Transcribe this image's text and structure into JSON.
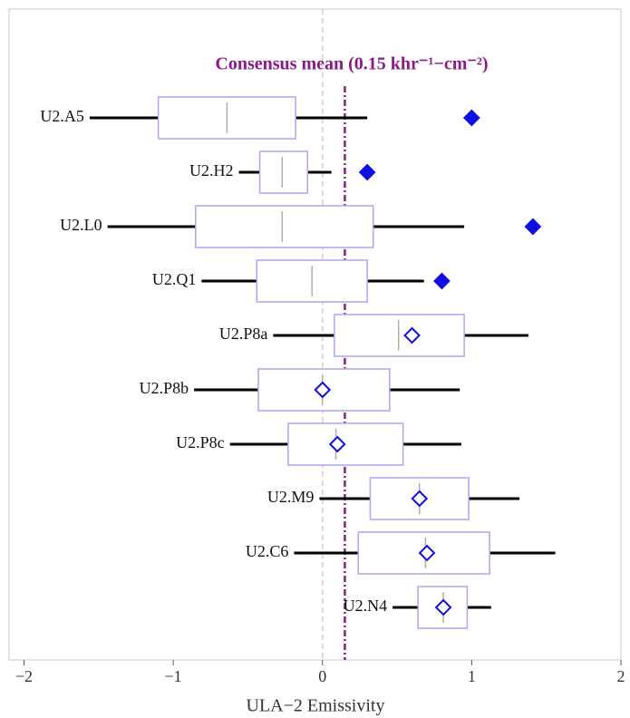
{
  "chart_data": {
    "type": "box",
    "title": "Consensus mean (0.15 khr⁻¹−cm⁻²)",
    "x_label": "ULA−2 Emissivity",
    "categories": [
      "U2.A5",
      "U2.H2",
      "U2.L0",
      "U2.Q1",
      "U2.P8a",
      "U2.P8b",
      "U2.P8c",
      "U2.M9",
      "U2.C6",
      "U2.N4"
    ],
    "whisker_low": [
      -1.56,
      -0.56,
      -1.44,
      -0.81,
      -0.33,
      -0.86,
      -0.62,
      -0.02,
      -0.19,
      0.47
    ],
    "q1": [
      -1.1,
      -0.42,
      -0.85,
      -0.44,
      0.08,
      -0.43,
      -0.23,
      0.32,
      0.24,
      0.64
    ],
    "median": [
      -0.64,
      -0.27,
      -0.27,
      -0.07,
      0.51,
      0.0,
      0.09,
      0.65,
      0.69,
      0.81
    ],
    "q3": [
      -0.18,
      -0.1,
      0.34,
      0.3,
      0.95,
      0.45,
      0.54,
      0.98,
      1.12,
      0.97
    ],
    "whisker_high": [
      0.3,
      0.06,
      0.95,
      0.68,
      1.38,
      0.92,
      0.93,
      1.32,
      1.56,
      1.13
    ],
    "marker": [
      1.0,
      0.3,
      1.41,
      0.8,
      0.6,
      0.0,
      0.1,
      0.65,
      0.7,
      0.81
    ],
    "marker_filled": [
      true,
      true,
      true,
      true,
      false,
      false,
      false,
      false,
      false,
      false
    ],
    "mean_line": 0.15,
    "mean_color": "#8b1a8b",
    "box_color": "#a8a8f0",
    "median_color": "#b0b0b0",
    "whisker_color": "#000000",
    "marker_color": "#1010e0",
    "zero_line": true,
    "xlim": [
      -2.1,
      2.0
    ],
    "xticks": [
      {
        "value": -2,
        "label": "−2"
      },
      {
        "value": -1,
        "label": "−1"
      },
      0,
      1,
      2
    ]
  }
}
